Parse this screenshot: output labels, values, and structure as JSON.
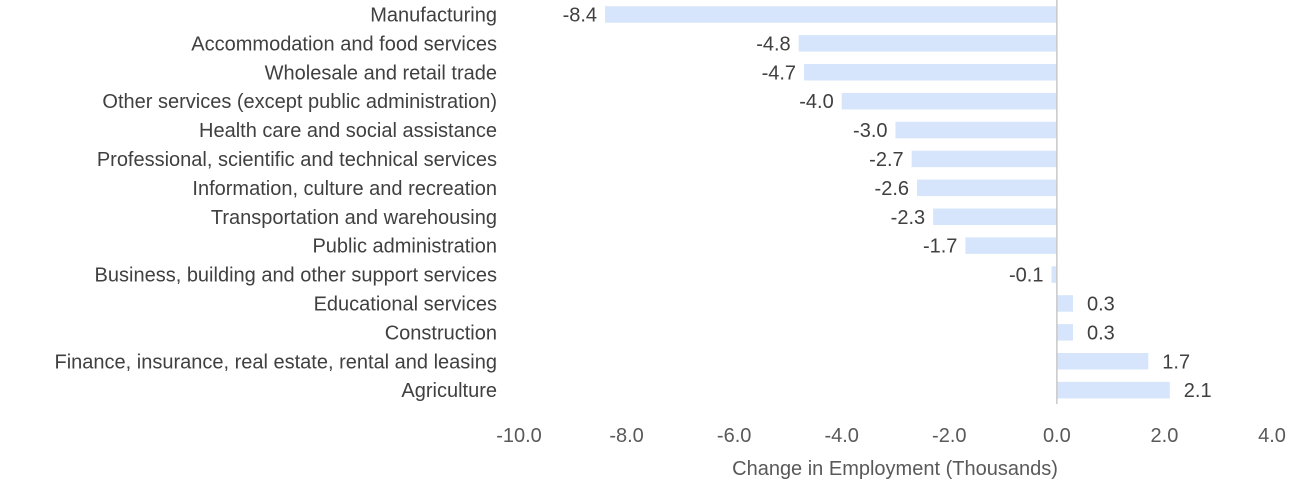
{
  "chart_data": {
    "type": "bar",
    "orientation": "horizontal",
    "categories": [
      "Manufacturing",
      "Accommodation and food services",
      "Wholesale and retail trade",
      "Other services (except public administration)",
      "Health care and social assistance",
      "Professional, scientific and technical services",
      "Information, culture and recreation",
      "Transportation and warehousing",
      "Public administration",
      "Business, building and other support services",
      "Educational services",
      "Construction",
      "Finance, insurance, real estate, rental and leasing",
      "Agriculture"
    ],
    "values": [
      -8.4,
      -4.8,
      -4.7,
      -4.0,
      -3.0,
      -2.7,
      -2.6,
      -2.3,
      -1.7,
      -0.1,
      0.3,
      0.3,
      1.7,
      2.1
    ],
    "data_labels": [
      "-8.4",
      "-4.8",
      "-4.7",
      "-4.0",
      "-3.0",
      "-2.7",
      "-2.6",
      "-2.3",
      "-1.7",
      "-0.1",
      "0.3",
      "0.3",
      "1.7",
      "2.1"
    ],
    "xticks": [
      "-10.0",
      "-8.0",
      "-6.0",
      "-4.0",
      "-2.0",
      "0.0",
      "2.0",
      "4.0"
    ],
    "xlim": [
      -10,
      4
    ],
    "xlabel": "Change in Employment (Thousands)",
    "title": "",
    "grid": false,
    "legend": "none",
    "bar_color": "#d6e5fb",
    "zero_line_color": "#c8c8c8"
  }
}
